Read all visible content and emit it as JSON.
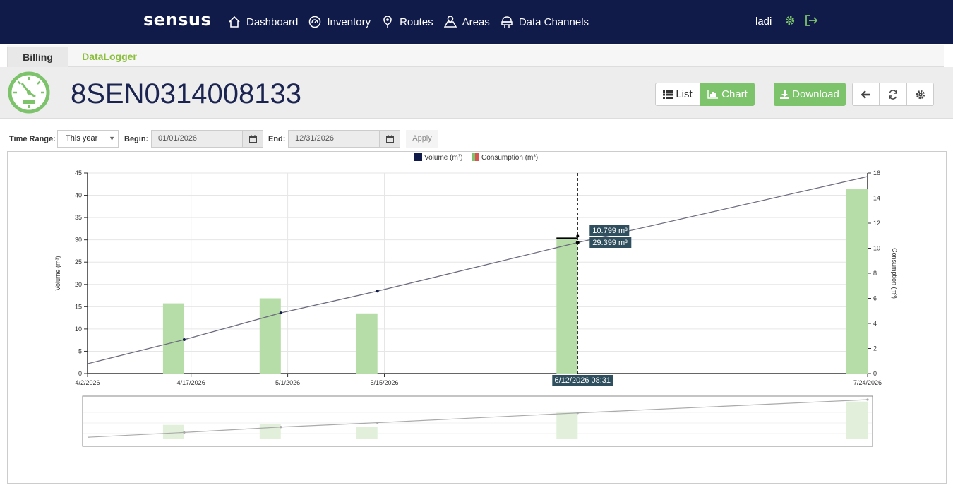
{
  "brand": {
    "logo": "sensus"
  },
  "nav": [
    {
      "label": "Dashboard",
      "icon": "home-icon"
    },
    {
      "label": "Inventory",
      "icon": "meter-icon"
    },
    {
      "label": "Routes",
      "icon": "route-pin-icon"
    },
    {
      "label": "Areas",
      "icon": "map-icon"
    },
    {
      "label": "Data Channels",
      "icon": "data-channels-icon"
    }
  ],
  "user": {
    "name": "ladi"
  },
  "tabs": {
    "billing": "Billing",
    "datalogger": "DataLogger"
  },
  "device": {
    "id": "8SEN0314008133"
  },
  "toolbar": {
    "list": "List",
    "chart": "Chart",
    "download": "Download"
  },
  "filters": {
    "time_range_label": "Time Range:",
    "time_range_value": "This year",
    "begin_label": "Begin:",
    "begin_value": "01/01/2026",
    "end_label": "End:",
    "end_value": "12/31/2026",
    "apply": "Apply"
  },
  "colors": {
    "navy": "#101b4a",
    "green": "#7dc36b",
    "bar": "#b6dca7",
    "line": "#6b6b7e"
  },
  "chart_data": {
    "type": "bar+line",
    "legend": [
      "Volume (m³)",
      "Consumption (m³)"
    ],
    "x_ticks": [
      "4/2/2026",
      "4/17/2026",
      "5/1/2026",
      "5/15/2026",
      "7/24/2026"
    ],
    "ylabel_left": "Volume (m³)",
    "ylabel_right": "Consumption (m³)",
    "ylim_left": [
      0,
      45
    ],
    "ylim_right": [
      0,
      16
    ],
    "yticks_left": [
      "0",
      "5",
      "10",
      "15",
      "20",
      "25",
      "30",
      "35",
      "40",
      "45"
    ],
    "yticks_right": [
      "0",
      "2",
      "4",
      "6",
      "8",
      "10",
      "12",
      "14",
      "16"
    ],
    "volume_line": [
      {
        "x": "4/2/2026",
        "y": 2.2
      },
      {
        "x": "4/16/2026",
        "y": 7.6
      },
      {
        "x": "4/30/2026",
        "y": 13.6
      },
      {
        "x": "5/14/2026",
        "y": 18.5
      },
      {
        "x": "6/12/2026",
        "y": 29.399
      },
      {
        "x": "7/24/2026",
        "y": 44.2
      }
    ],
    "consumption_bars": [
      {
        "x": "4/16/2026",
        "y": 5.6
      },
      {
        "x": "4/30/2026",
        "y": 6.0
      },
      {
        "x": "5/14/2026",
        "y": 4.8
      },
      {
        "x": "6/12/2026",
        "y": 10.799
      },
      {
        "x": "7/24/2026",
        "y": 14.7
      }
    ],
    "tooltip": {
      "date": "6/12/2026 08:31",
      "consumption": "10.799 m³",
      "volume": "29.399 m³"
    },
    "grid": true,
    "legend_position": "top-center"
  }
}
